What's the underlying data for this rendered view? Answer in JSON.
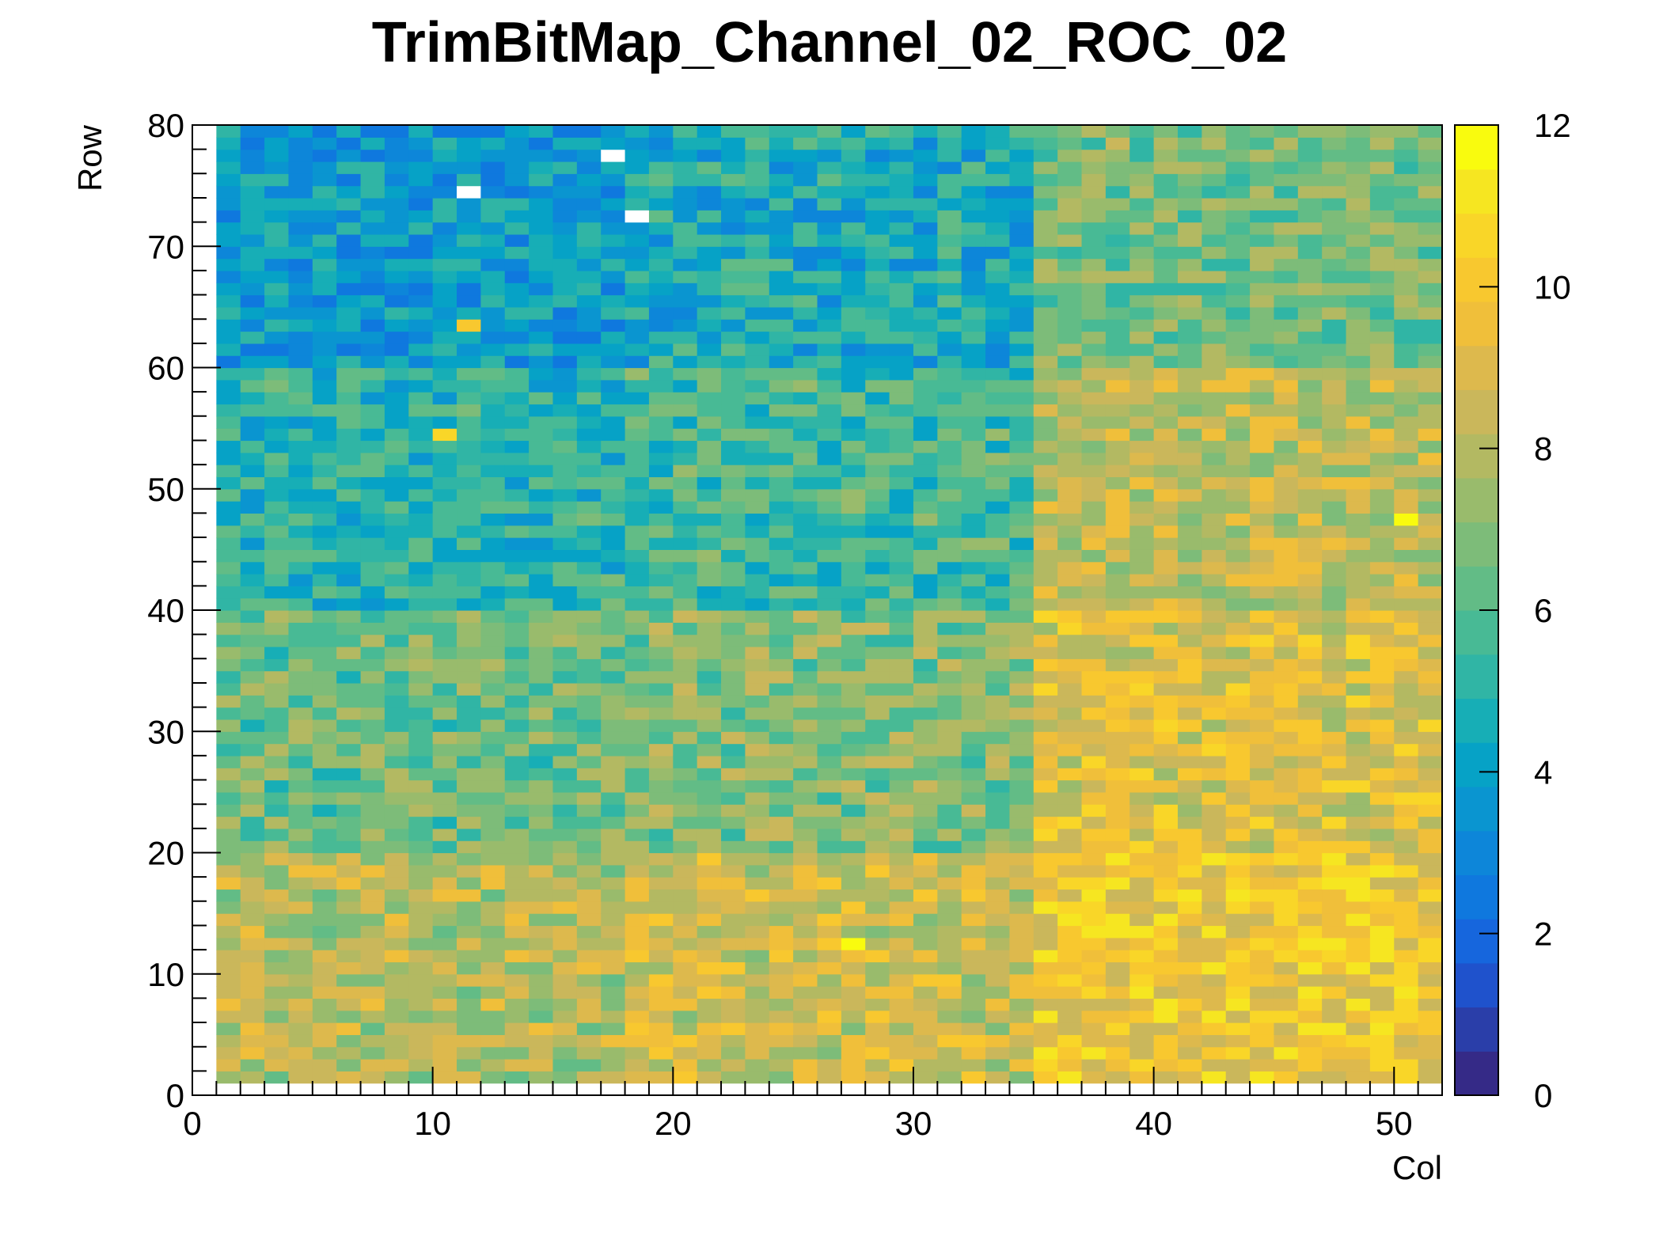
{
  "chart_data": {
    "type": "heatmap",
    "title": "TrimBitMap_Channel_02_ROC_02",
    "xlabel": "Col",
    "ylabel": "Row",
    "xlim": [
      0,
      52
    ],
    "ylim": [
      0,
      80
    ],
    "zlim": [
      0,
      12
    ],
    "x_ticks": [
      0,
      10,
      20,
      30,
      40,
      50
    ],
    "y_ticks": [
      0,
      10,
      20,
      30,
      40,
      50,
      60,
      70,
      80
    ],
    "z_ticks": [
      0,
      2,
      4,
      6,
      8,
      10,
      12
    ],
    "x_tick_labels": [
      "0",
      "10",
      "20",
      "30",
      "40",
      "50"
    ],
    "y_tick_labels": [
      "0",
      "10",
      "20",
      "30",
      "40",
      "50",
      "60",
      "70",
      "80"
    ],
    "z_tick_labels": [
      "0",
      "2",
      "4",
      "6",
      "8",
      "10",
      "12"
    ],
    "grid": false,
    "colorbar": "right",
    "palette": [
      "#352a87",
      "#2a3ea9",
      "#1f52cc",
      "#1666dd",
      "#0f78de",
      "#0d86d9",
      "#0a95d0",
      "#06a2c6",
      "#17aeb6",
      "#30b5a5",
      "#48ba95",
      "#62bc86",
      "#7dbc79",
      "#99bb6c",
      "#b3b962",
      "#cab75b",
      "#ddb94d",
      "#f0bf3a",
      "#f8c82f",
      "#f9d628",
      "#f6e621",
      "#f9fb0e"
    ],
    "zone_means": [
      {
        "col_range": [
          1,
          18
        ],
        "row_range": [
          60,
          80
        ],
        "mean": 3.8
      },
      {
        "col_range": [
          18,
          35
        ],
        "row_range": [
          60,
          80
        ],
        "mean": 4.6
      },
      {
        "col_range": [
          35,
          52
        ],
        "row_range": [
          60,
          80
        ],
        "mean": 6.6
      },
      {
        "col_range": [
          1,
          18
        ],
        "row_range": [
          40,
          60
        ],
        "mean": 5.0
      },
      {
        "col_range": [
          18,
          35
        ],
        "row_range": [
          40,
          60
        ],
        "mean": 5.6
      },
      {
        "col_range": [
          35,
          52
        ],
        "row_range": [
          40,
          60
        ],
        "mean": 8.2
      },
      {
        "col_range": [
          1,
          18
        ],
        "row_range": [
          20,
          40
        ],
        "mean": 6.4
      },
      {
        "col_range": [
          18,
          35
        ],
        "row_range": [
          20,
          40
        ],
        "mean": 6.9
      },
      {
        "col_range": [
          35,
          52
        ],
        "row_range": [
          20,
          40
        ],
        "mean": 9.0
      },
      {
        "col_range": [
          1,
          18
        ],
        "row_range": [
          1,
          20
        ],
        "mean": 8.0
      },
      {
        "col_range": [
          18,
          35
        ],
        "row_range": [
          1,
          20
        ],
        "mean": 8.5
      },
      {
        "col_range": [
          35,
          52
        ],
        "row_range": [
          1,
          20
        ],
        "mean": 9.8
      }
    ],
    "outliers": [
      {
        "col": 17,
        "row": 77,
        "value": null
      },
      {
        "col": 11,
        "row": 74,
        "value": null
      },
      {
        "col": 18,
        "row": 72,
        "value": null
      },
      {
        "col": 27,
        "row": 12,
        "value": 12
      },
      {
        "col": 50,
        "row": 47,
        "value": 11.5
      },
      {
        "col": 10,
        "row": 54,
        "value": 10.5
      },
      {
        "col": 11,
        "row": 63,
        "value": 10
      }
    ]
  }
}
